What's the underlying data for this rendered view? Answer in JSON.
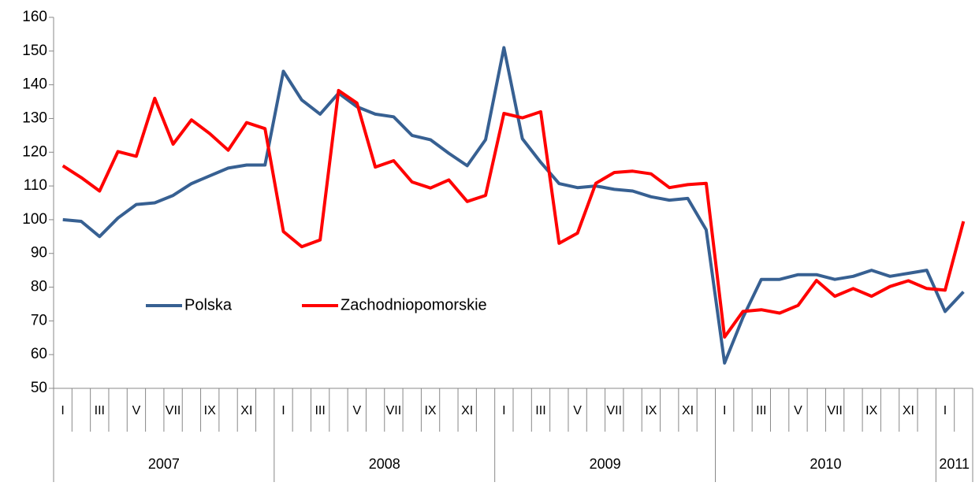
{
  "chart_data": {
    "type": "line",
    "category_groups": [
      {
        "label": "2007",
        "categories": [
          "I",
          null,
          "III",
          null,
          "V",
          null,
          "VII",
          null,
          "IX",
          null,
          "XI",
          null
        ]
      },
      {
        "label": "2008",
        "categories": [
          "I",
          null,
          "III",
          null,
          "V",
          null,
          "VII",
          null,
          "IX",
          null,
          "XI",
          null
        ]
      },
      {
        "label": "2009",
        "categories": [
          "I",
          null,
          "III",
          null,
          "V",
          null,
          "VII",
          null,
          "IX",
          null,
          "XI",
          null
        ]
      },
      {
        "label": "2010",
        "categories": [
          "I",
          null,
          "III",
          null,
          "V",
          null,
          "VII",
          null,
          "IX",
          null,
          "XI",
          null
        ]
      },
      {
        "label": "2011",
        "categories": [
          "I",
          null
        ]
      }
    ],
    "series": [
      {
        "name": "Polska",
        "color": "#376092",
        "values": [
          100,
          99.5,
          95,
          100.5,
          104.5,
          105,
          107.2,
          110.7,
          113,
          115.3,
          116.2,
          116.2,
          144,
          135.5,
          131.3,
          137.5,
          133.5,
          131.3,
          130.5,
          125,
          123.7,
          119.7,
          116,
          123.7,
          151,
          124,
          117,
          110.7,
          109.5,
          110,
          109,
          108.5,
          106.8,
          105.8,
          106.3,
          97,
          57.5,
          71,
          82.3,
          82.3,
          83.7,
          83.7,
          82.3,
          83.2,
          85,
          83.2,
          84.1,
          85,
          72.8,
          78.6
        ]
      },
      {
        "name": "Zachodniopomorskie",
        "color": "#ff0000",
        "values": [
          116,
          112.5,
          108.5,
          120.2,
          118.8,
          136,
          122.4,
          129.6,
          125.5,
          120.6,
          128.8,
          127,
          96.5,
          92,
          94,
          138.3,
          134.6,
          115.6,
          117.5,
          111.2,
          109.4,
          111.8,
          105.4,
          107.2,
          131.5,
          130.2,
          132,
          93,
          96,
          110.8,
          114,
          114.4,
          113.6,
          109.5,
          110.4,
          110.8,
          65.2,
          72.8,
          73.3,
          72.3,
          74.6,
          82,
          77.3,
          79.6,
          77.3,
          80.2,
          81.9,
          79.6,
          79.1,
          99.5
        ]
      }
    ],
    "ylim": [
      50,
      160
    ],
    "yticks": [
      50,
      60,
      70,
      80,
      90,
      100,
      110,
      120,
      130,
      140,
      150,
      160
    ],
    "grid": false
  }
}
